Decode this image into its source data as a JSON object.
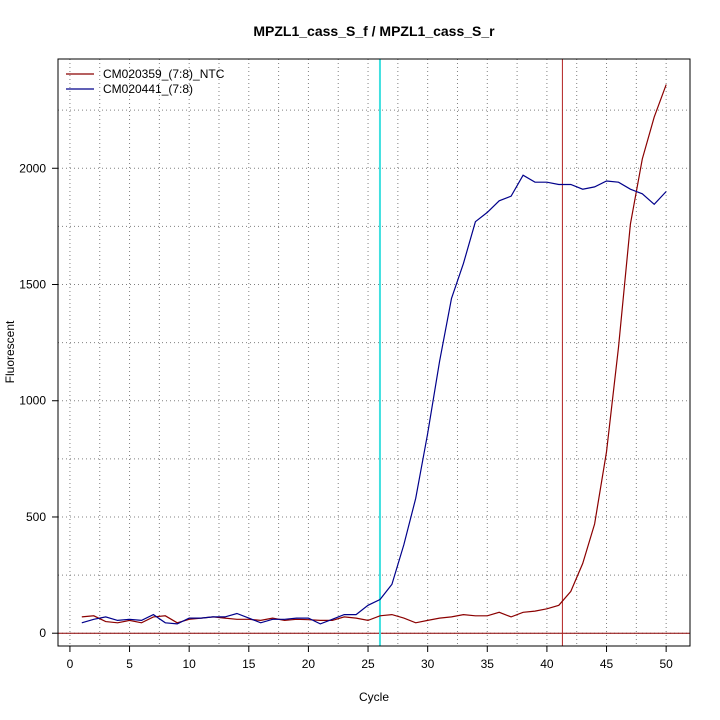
{
  "chart_data": {
    "type": "line",
    "title": "MPZL1_cass_S_f / MPZL1_cass_S_r",
    "xlabel": "Cycle",
    "ylabel": "Fluorescent",
    "xlim": [
      -1,
      52
    ],
    "ylim": [
      -55,
      2470
    ],
    "x_ticks": [
      0,
      5,
      10,
      15,
      20,
      25,
      30,
      35,
      40,
      45,
      50
    ],
    "y_ticks": [
      0,
      500,
      1000,
      1500,
      2000
    ],
    "grid": true,
    "legend_position": "top-left",
    "x": [
      1,
      2,
      3,
      4,
      5,
      6,
      7,
      8,
      9,
      10,
      11,
      12,
      13,
      14,
      15,
      16,
      17,
      18,
      19,
      20,
      21,
      22,
      23,
      24,
      25,
      26,
      27,
      28,
      29,
      30,
      31,
      32,
      33,
      34,
      35,
      36,
      37,
      38,
      39,
      40,
      41,
      42,
      43,
      44,
      45,
      46,
      47,
      48,
      49,
      50
    ],
    "series": [
      {
        "name": "CM020359_(7:8)_NTC",
        "color": "#8b0000",
        "values": [
          70,
          75,
          50,
          45,
          55,
          45,
          70,
          75,
          45,
          60,
          65,
          70,
          65,
          60,
          60,
          55,
          65,
          55,
          60,
          58,
          55,
          55,
          70,
          65,
          55,
          75,
          80,
          65,
          45,
          55,
          65,
          70,
          80,
          75,
          75,
          90,
          70,
          90,
          95,
          105,
          120,
          180,
          300,
          470,
          780,
          1230,
          1760,
          2040,
          2220,
          2360
        ]
      },
      {
        "name": "CM020441_(7:8)",
        "color": "#00008b",
        "values": [
          45,
          60,
          70,
          55,
          60,
          55,
          80,
          45,
          40,
          65,
          65,
          70,
          70,
          85,
          65,
          45,
          60,
          60,
          65,
          65,
          40,
          60,
          80,
          80,
          120,
          145,
          210,
          380,
          580,
          860,
          1170,
          1440,
          1590,
          1770,
          1810,
          1860,
          1880,
          1970,
          1940,
          1940,
          1930,
          1930,
          1910,
          1920,
          1945,
          1940,
          1910,
          1890,
          1845,
          1900
        ]
      }
    ],
    "vertical_lines": [
      {
        "x": 26,
        "color": "#40e0e0"
      },
      {
        "x": 41.3,
        "color": "#b22222"
      }
    ],
    "horizontal_lines": [
      {
        "y": 0,
        "color": "#8b0000"
      }
    ]
  }
}
